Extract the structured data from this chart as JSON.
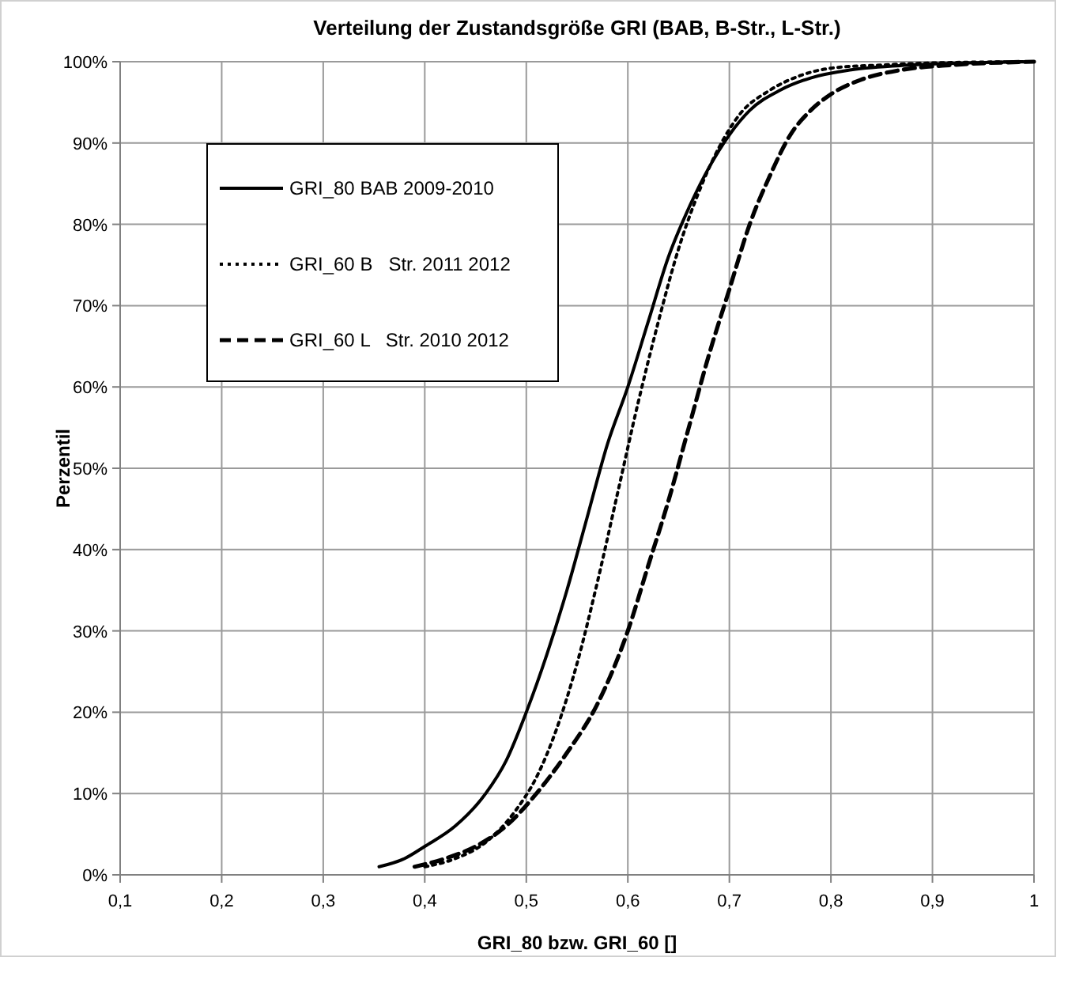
{
  "chart_data": {
    "type": "line",
    "title": "Verteilung der Zustandsgröße GRI (BAB, B-Str., L-Str.)",
    "xlabel": "GRI_80 bzw. GRI_60 []",
    "ylabel": "Perzentil",
    "xlim": [
      0.1,
      1
    ],
    "xticks": [
      {
        "value": 0.1,
        "label": "0,1"
      },
      {
        "value": 0.2,
        "label": "0,2"
      },
      {
        "value": 0.3,
        "label": "0,3"
      },
      {
        "value": 0.4,
        "label": "0,4"
      },
      {
        "value": 0.5,
        "label": "0,5"
      },
      {
        "value": 0.6,
        "label": "0,6"
      },
      {
        "value": 0.7,
        "label": "0,7"
      },
      {
        "value": 0.8,
        "label": "0,8"
      },
      {
        "value": 0.9,
        "label": "0,9"
      },
      1
    ],
    "ylim": [
      0,
      100
    ],
    "yticks": [
      {
        "value": 0,
        "label": "0%"
      },
      {
        "value": 10,
        "label": "10%"
      },
      {
        "value": 20,
        "label": "20%"
      },
      {
        "value": 30,
        "label": "30%"
      },
      {
        "value": 40,
        "label": "40%"
      },
      {
        "value": 50,
        "label": "50%"
      },
      {
        "value": 60,
        "label": "60%"
      },
      {
        "value": 70,
        "label": "70%"
      },
      {
        "value": 80,
        "label": "80%"
      },
      {
        "value": 90,
        "label": "90%"
      },
      {
        "value": 100,
        "label": "100%"
      }
    ],
    "grid": true,
    "legend": "top left",
    "marker": "none",
    "series": [
      {
        "name": "GRI_80 BAB 2009-2010",
        "color": "#000000",
        "line_style": "solid",
        "x": [
          0.355,
          0.38,
          0.4,
          0.43,
          0.46,
          0.48,
          0.5,
          0.52,
          0.54,
          0.56,
          0.58,
          0.6,
          0.62,
          0.64,
          0.66,
          0.68,
          0.7,
          0.72,
          0.75,
          0.78,
          0.82,
          0.88,
          0.95,
          1
        ],
        "values": [
          1,
          2,
          3.5,
          6,
          10,
          14,
          20,
          27,
          35,
          44,
          53,
          60,
          68,
          76,
          82,
          87,
          91,
          94,
          96.5,
          98,
          99,
          99.6,
          99.9,
          100
        ]
      },
      {
        "name": "GRI_60 B   Str. 2011 2012",
        "color": "#000000",
        "line_style": "dotted",
        "x": [
          0.4,
          0.43,
          0.46,
          0.49,
          0.51,
          0.53,
          0.55,
          0.57,
          0.59,
          0.61,
          0.63,
          0.65,
          0.67,
          0.69,
          0.71,
          0.74,
          0.77,
          0.8,
          0.85,
          0.92,
          1
        ],
        "values": [
          1,
          2,
          4,
          8,
          12,
          18,
          26,
          36,
          47,
          58,
          68,
          77,
          84,
          89.5,
          93.5,
          96.5,
          98.3,
          99.2,
          99.6,
          99.9,
          100
        ]
      },
      {
        "name": "GRI_60 L   Str. 2010 2012",
        "color": "#000000",
        "line_style": "dashed",
        "x": [
          0.39,
          0.42,
          0.45,
          0.48,
          0.51,
          0.54,
          0.57,
          0.6,
          0.62,
          0.64,
          0.66,
          0.68,
          0.7,
          0.72,
          0.74,
          0.76,
          0.78,
          0.8,
          0.83,
          0.87,
          0.92,
          1
        ],
        "values": [
          1,
          2,
          3.5,
          6,
          10,
          15,
          21,
          30,
          38,
          46,
          55,
          64,
          72,
          80,
          86,
          91,
          94,
          96,
          97.8,
          99,
          99.6,
          100
        ]
      }
    ]
  }
}
